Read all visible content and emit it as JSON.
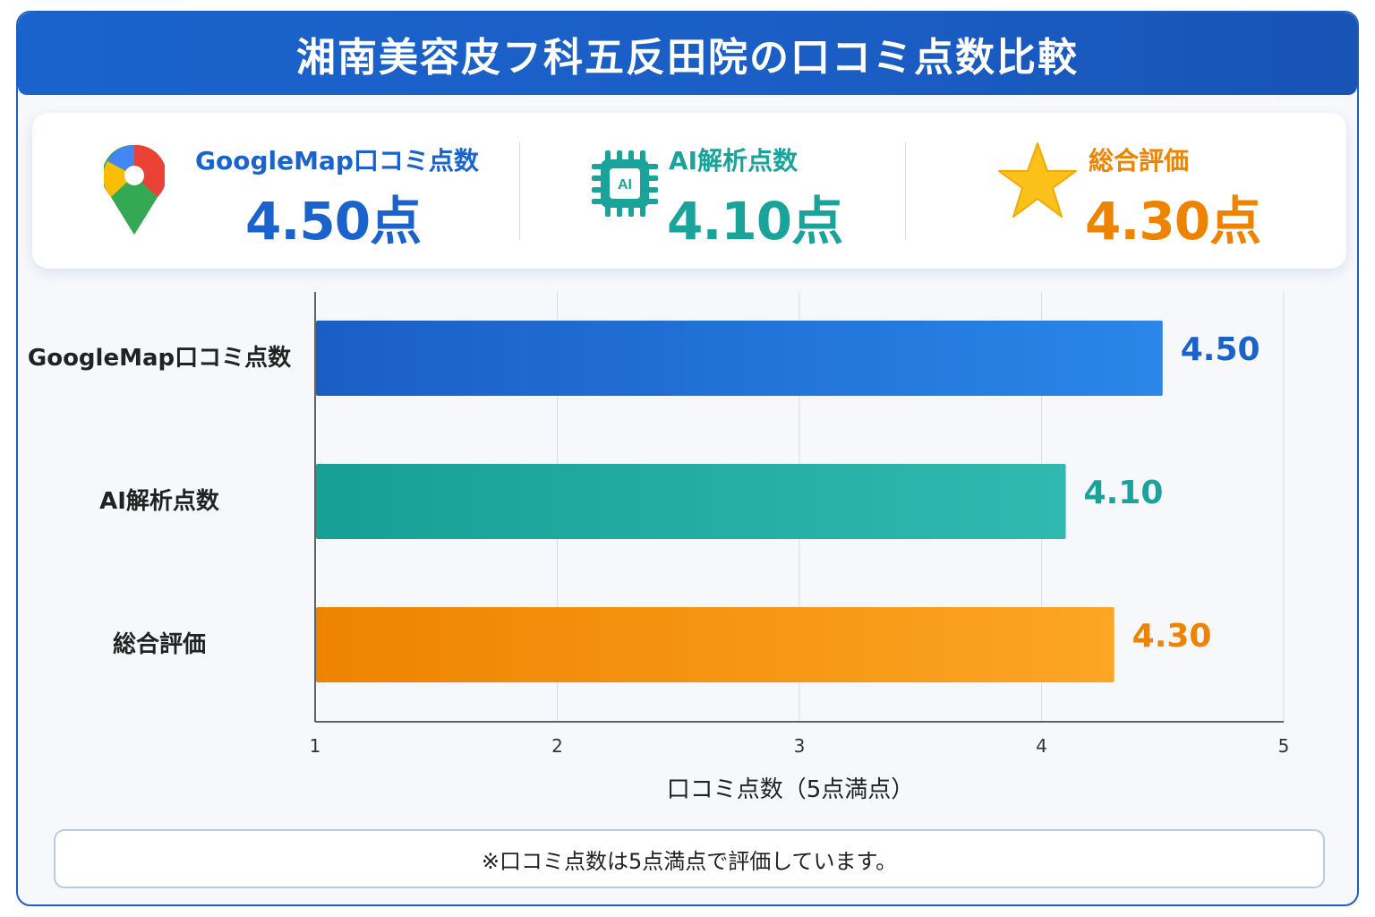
{
  "title": "湘南美容皮フ科五反田院の口コミ点数比較",
  "summary": [
    {
      "label": "GoogleMap口コミ点数",
      "value": "4.50点",
      "icon": "map-pin-icon",
      "color": "#1a63cc"
    },
    {
      "label": "AI解析点数",
      "value": "4.10点",
      "icon": "ai-chip-icon",
      "chip_text": "AI",
      "color": "#1aa39a"
    },
    {
      "label": "総合評価",
      "value": "4.30点",
      "icon": "star-icon",
      "color": "#ee8300"
    }
  ],
  "chart_data": {
    "type": "bar",
    "orientation": "horizontal",
    "categories": [
      "GoogleMap口コミ点数",
      "AI解析点数",
      "総合評価"
    ],
    "values": [
      4.5,
      4.1,
      4.3
    ],
    "value_labels": [
      "4.50",
      "4.10",
      "4.30"
    ],
    "colors": [
      [
        "#1a5ec5",
        "#2a86e8"
      ],
      [
        "#16a095",
        "#2fb9b0"
      ],
      [
        "#ee8300",
        "#fca624"
      ]
    ],
    "label_colors": [
      "#1a63cc",
      "#1aa39a",
      "#ee8300"
    ],
    "xlabel": "口コミ点数（5点満点）",
    "xlim": [
      1,
      5
    ],
    "xticks": [
      1,
      2,
      3,
      4,
      5
    ],
    "grid": true
  },
  "note": "※口コミ点数は5点満点で評価しています。"
}
